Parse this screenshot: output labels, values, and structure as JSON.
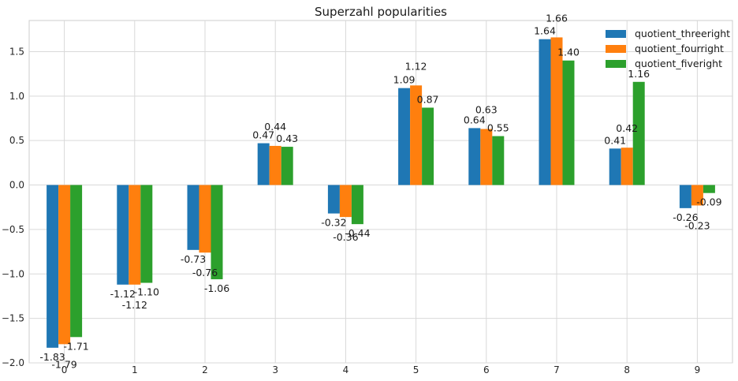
{
  "chart_data": {
    "type": "bar",
    "title": "Superzahl popularities",
    "xlabel": "",
    "ylabel": "",
    "categories": [
      "0",
      "1",
      "2",
      "3",
      "4",
      "5",
      "6",
      "7",
      "8",
      "9"
    ],
    "series": [
      {
        "name": "quotient_threeright",
        "color": "#1f77b4",
        "values": [
          -1.83,
          -1.12,
          -0.73,
          0.47,
          -0.32,
          1.09,
          0.64,
          1.64,
          0.41,
          -0.26
        ]
      },
      {
        "name": "quotient_fourright",
        "color": "#ff7f0e",
        "values": [
          -1.79,
          -1.12,
          -0.76,
          0.44,
          -0.36,
          1.12,
          0.63,
          1.66,
          0.42,
          -0.23
        ]
      },
      {
        "name": "quotient_fiveright",
        "color": "#2ca02c",
        "values": [
          -1.71,
          -1.1,
          -1.06,
          0.43,
          -0.44,
          0.87,
          0.55,
          1.4,
          1.16,
          -0.09
        ]
      }
    ],
    "ylim": [
      -2.0,
      1.85
    ],
    "yticks": [
      -2.0,
      -1.5,
      -1.0,
      -0.5,
      0.0,
      0.5,
      1.0,
      1.5
    ],
    "ytick_labels": [
      "−2.0",
      "−1.5",
      "−1.0",
      "−0.5",
      "0.0",
      "0.5",
      "1.0",
      "1.5"
    ],
    "grid": true,
    "legend_position": "top-right"
  }
}
